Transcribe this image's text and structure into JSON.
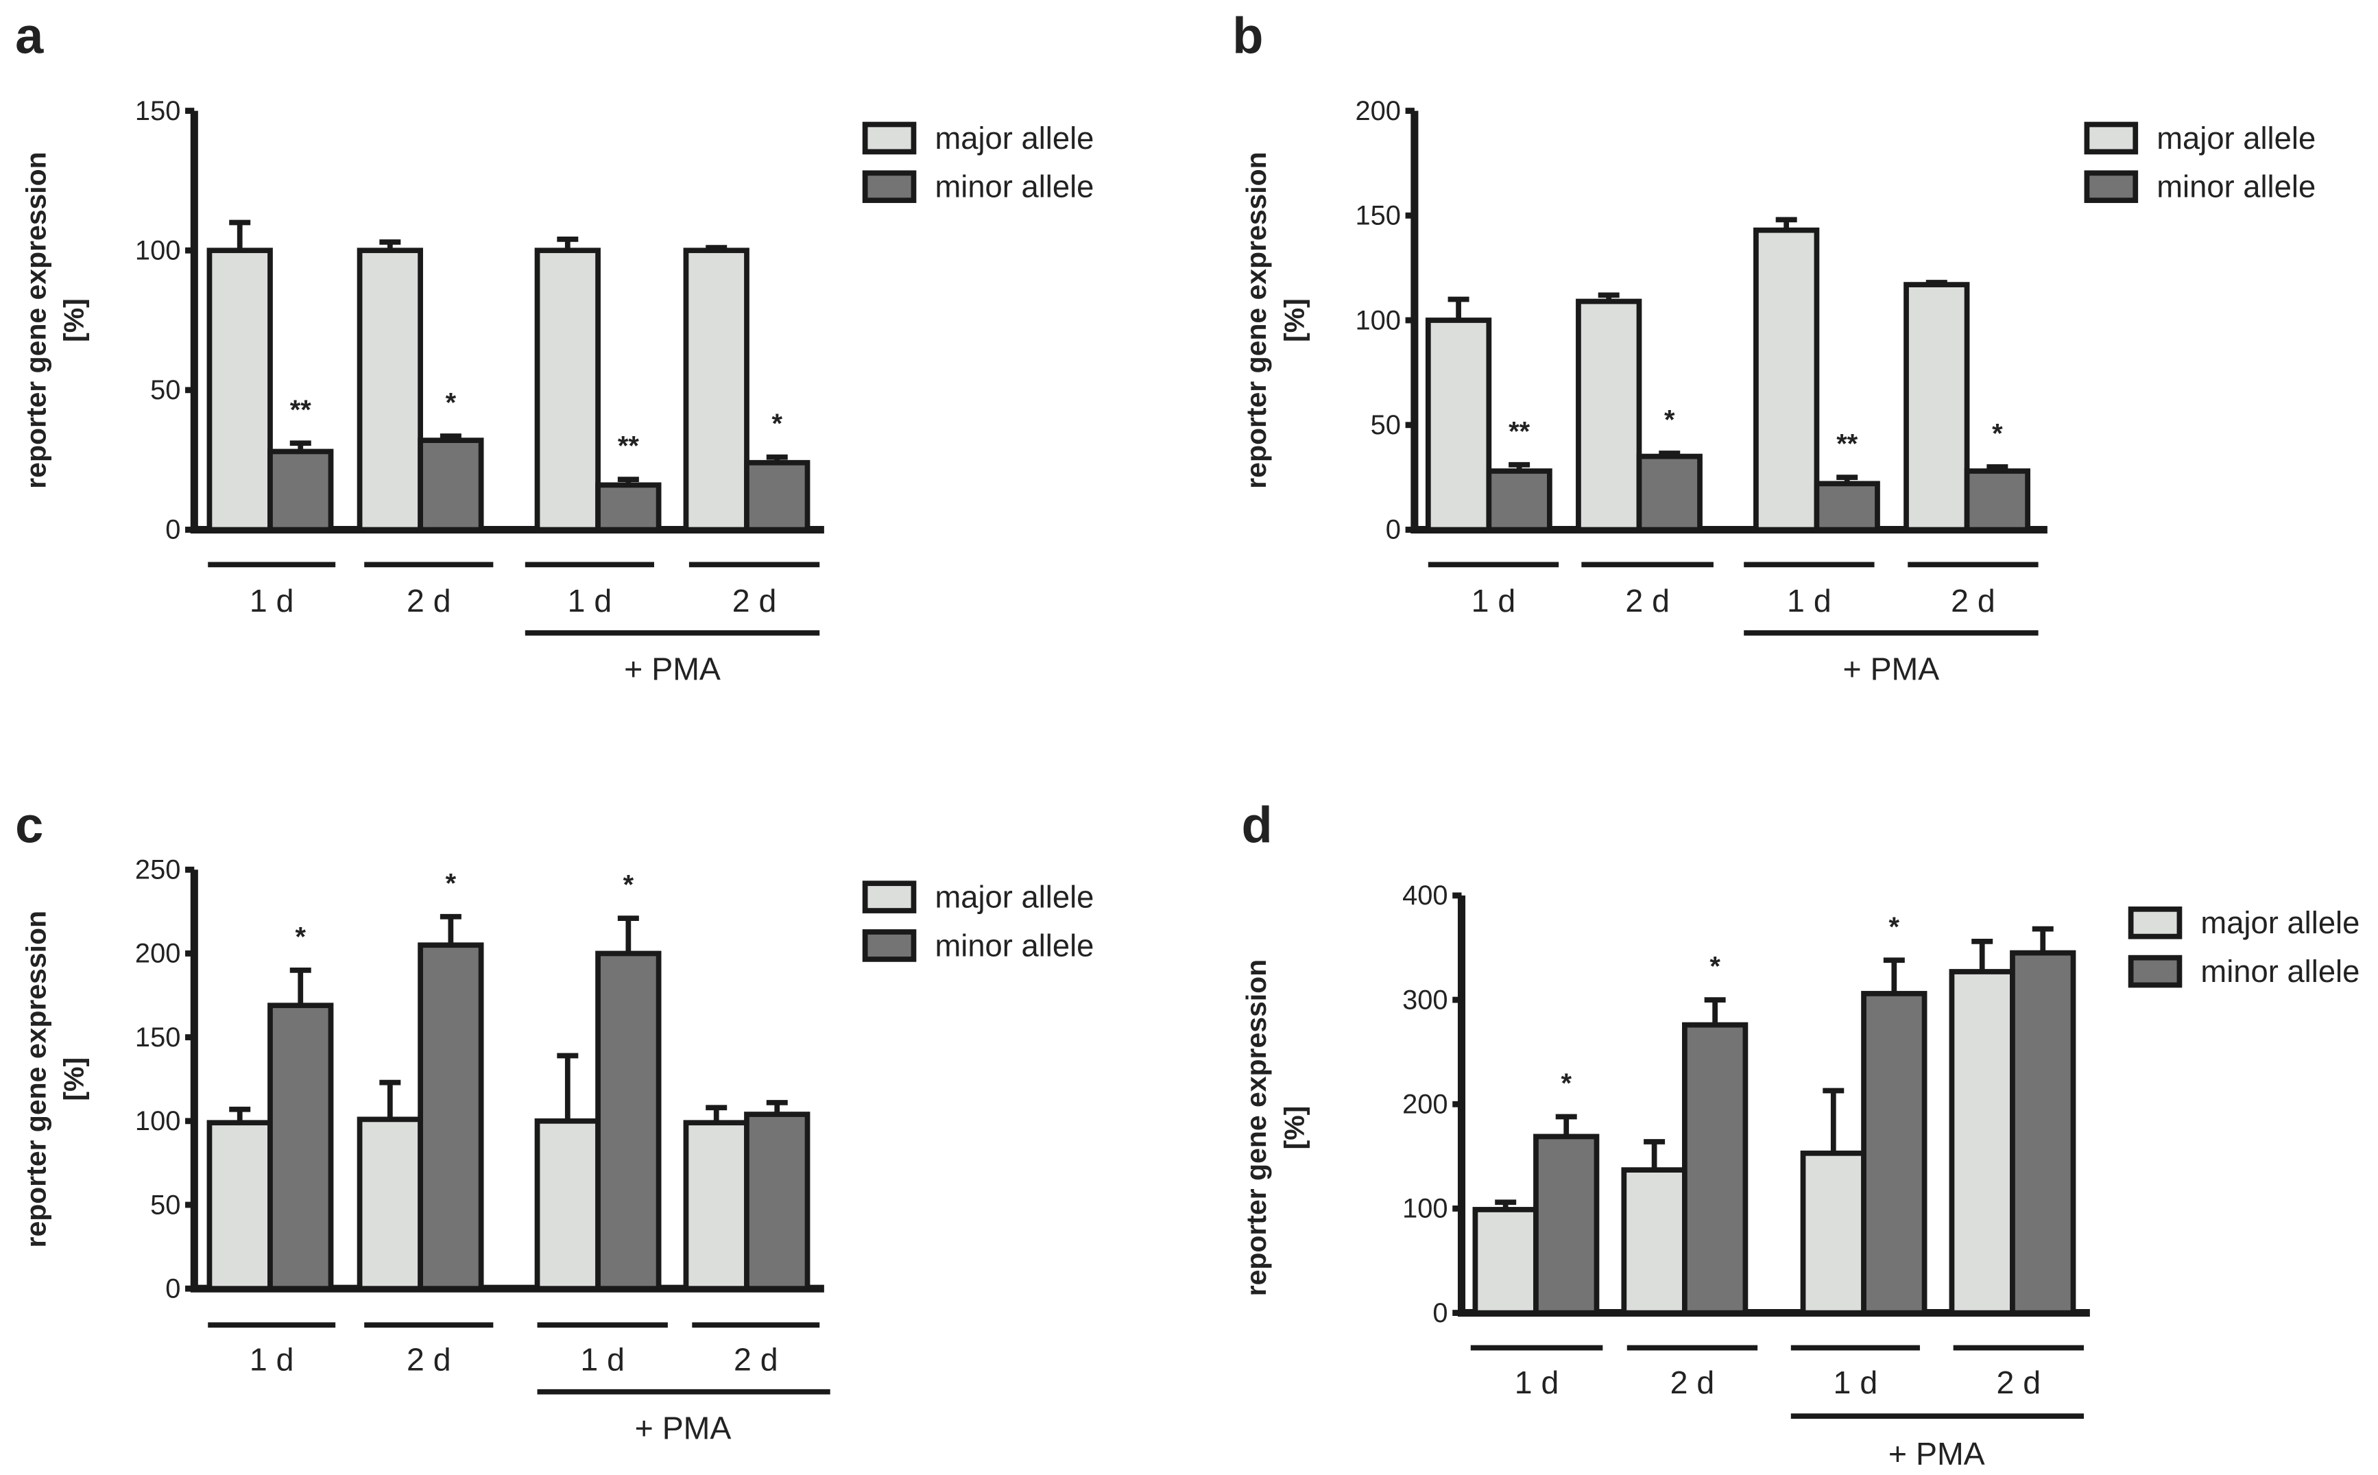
{
  "figure": {
    "colors": {
      "major": "#dcdedc",
      "minor": "#737473",
      "stroke": "#1a1a1a"
    },
    "legend": {
      "major": "major allele",
      "minor": "minor allele"
    },
    "y_axis_title": [
      "reporter gene expression",
      "[%]"
    ],
    "group_labels": [
      "1 d",
      "2 d",
      "1 d",
      "2 d"
    ],
    "pma_label": "+ PMA"
  },
  "chart_data": [
    {
      "panel": "a",
      "type": "bar",
      "categories": [
        "1 d",
        "2 d",
        "1 d (+ PMA)",
        "2 d (+ PMA)"
      ],
      "ylim": [
        0,
        150
      ],
      "yticks": [
        0,
        50,
        100,
        150
      ],
      "ylabel": "reporter gene expression [%]",
      "series": [
        {
          "name": "major allele",
          "values": [
            100,
            100,
            100,
            100
          ],
          "errors": [
            10,
            3,
            4,
            1
          ]
        },
        {
          "name": "minor allele",
          "values": [
            28,
            32,
            16,
            24
          ],
          "errors": [
            3,
            1.5,
            2,
            2
          ]
        }
      ],
      "significance": [
        "**",
        "*",
        "**",
        "*"
      ],
      "significance_on": "minor allele"
    },
    {
      "panel": "b",
      "type": "bar",
      "categories": [
        "1 d",
        "2 d",
        "1 d (+ PMA)",
        "2 d (+ PMA)"
      ],
      "ylim": [
        0,
        200
      ],
      "yticks": [
        0,
        50,
        100,
        150,
        200
      ],
      "ylabel": "reporter gene expression [%]",
      "series": [
        {
          "name": "major allele",
          "values": [
            100,
            109,
            143,
            117
          ],
          "errors": [
            10,
            3,
            5,
            1
          ]
        },
        {
          "name": "minor allele",
          "values": [
            28,
            35,
            22,
            28
          ],
          "errors": [
            3,
            1.5,
            3,
            2
          ]
        }
      ],
      "significance": [
        "**",
        "*",
        "**",
        "*"
      ],
      "significance_on": "minor allele"
    },
    {
      "panel": "c",
      "type": "bar",
      "categories": [
        "1 d",
        "2 d",
        "1 d (+ PMA)",
        "2 d (+ PMA)"
      ],
      "ylim": [
        0,
        250
      ],
      "yticks": [
        0,
        50,
        100,
        150,
        200,
        250
      ],
      "ylabel": "reporter gene expression [%]",
      "series": [
        {
          "name": "major allele",
          "values": [
            99,
            101,
            100,
            99
          ],
          "errors": [
            8,
            22,
            39,
            9
          ]
        },
        {
          "name": "minor allele",
          "values": [
            169,
            205,
            200,
            104
          ],
          "errors": [
            21,
            17,
            21,
            7
          ]
        }
      ],
      "significance": [
        "*",
        "*",
        "*",
        ""
      ],
      "significance_on": "minor allele"
    },
    {
      "panel": "d",
      "type": "bar",
      "categories": [
        "1 d",
        "2 d",
        "1 d (+ PMA)",
        "2 d (+ PMA)"
      ],
      "ylim": [
        0,
        400
      ],
      "yticks": [
        0,
        100,
        200,
        300,
        400
      ],
      "ylabel": "reporter gene expression [%]",
      "series": [
        {
          "name": "major allele",
          "values": [
            99,
            137,
            153,
            327
          ],
          "errors": [
            7,
            27,
            60,
            29
          ]
        },
        {
          "name": "minor allele",
          "values": [
            169,
            276,
            306,
            345
          ],
          "errors": [
            19,
            24,
            32,
            23
          ]
        }
      ],
      "significance": [
        "*",
        "*",
        "*",
        ""
      ],
      "significance_on": "minor allele"
    }
  ]
}
